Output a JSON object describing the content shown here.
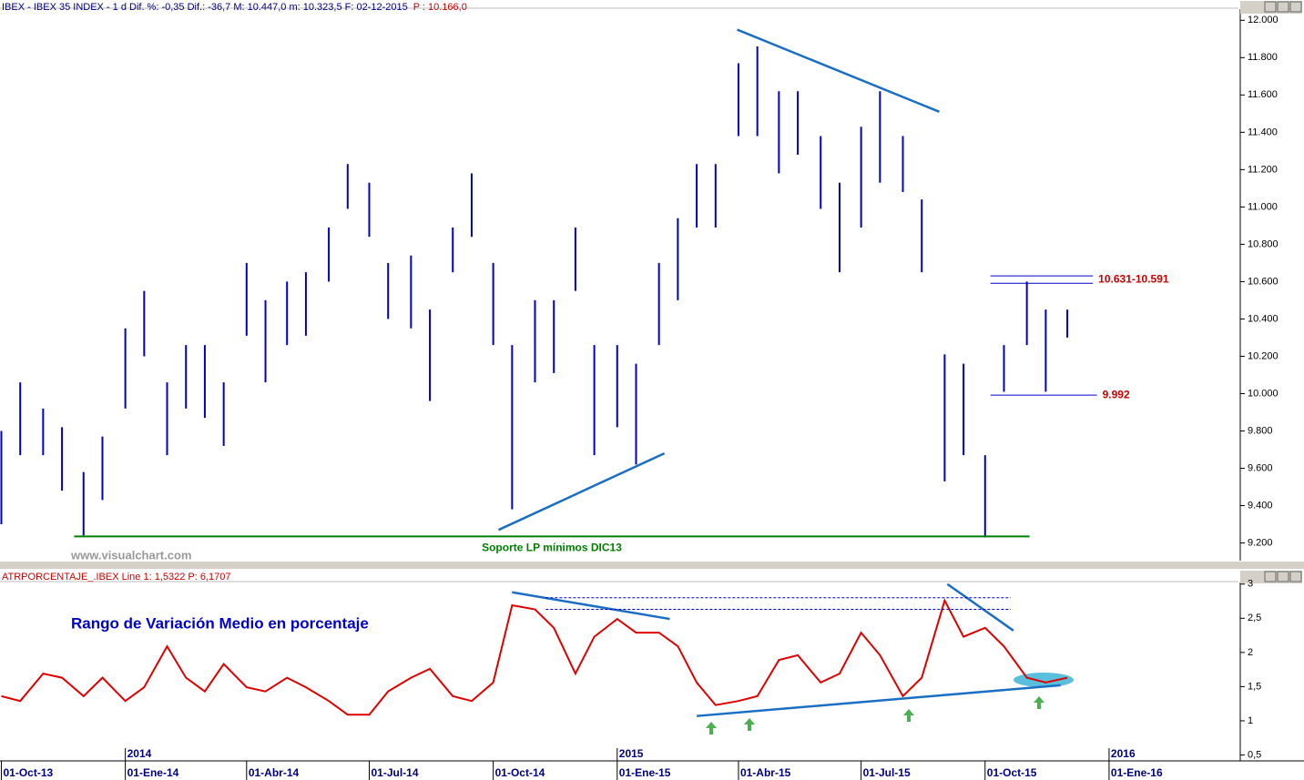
{
  "chart_data": [
    {
      "type": "ohlc",
      "header": "IBEX - IBEX 35 INDEX - 1 d Dif. %: -0,35 Dif.: -36,7 M: 10.447,0 m: 10.323,5 F: 02-12-2015",
      "price_label": "P : 10.166,0",
      "watermark": "www.visualchart.com",
      "color": "#0000cc",
      "x": [
        "2013-10-01",
        "2013-10-15",
        "2013-11-01",
        "2013-11-15",
        "2013-12-01",
        "2013-12-15",
        "2014-01-01",
        "2014-01-15",
        "2014-02-01",
        "2014-02-15",
        "2014-03-01",
        "2014-03-15",
        "2014-04-01",
        "2014-04-15",
        "2014-05-01",
        "2014-05-15",
        "2014-06-01",
        "2014-06-15",
        "2014-07-01",
        "2014-07-15",
        "2014-08-01",
        "2014-08-15",
        "2014-09-01",
        "2014-09-15",
        "2014-10-01",
        "2014-10-15",
        "2014-11-01",
        "2014-11-15",
        "2014-12-01",
        "2014-12-15",
        "2015-01-01",
        "2015-01-15",
        "2015-02-01",
        "2015-02-15",
        "2015-03-01",
        "2015-03-15",
        "2015-04-01",
        "2015-04-15",
        "2015-05-01",
        "2015-05-15",
        "2015-06-01",
        "2015-06-15",
        "2015-07-01",
        "2015-07-15",
        "2015-08-01",
        "2015-08-15",
        "2015-09-01",
        "2015-09-15",
        "2015-10-01",
        "2015-10-15",
        "2015-11-01",
        "2015-11-15",
        "2015-12-01"
      ],
      "high": [
        9.8,
        10.06,
        9.92,
        9.82,
        9.58,
        9.77,
        10.35,
        10.55,
        10.06,
        10.26,
        10.26,
        10.06,
        10.7,
        10.5,
        10.6,
        10.65,
        10.89,
        11.23,
        11.13,
        10.7,
        10.74,
        10.45,
        10.89,
        11.18,
        10.7,
        10.26,
        10.5,
        10.5,
        10.89,
        10.26,
        10.26,
        10.16,
        10.7,
        10.94,
        11.23,
        11.23,
        11.77,
        11.86,
        11.62,
        11.62,
        11.38,
        11.13,
        11.43,
        11.62,
        11.38,
        11.04,
        10.21,
        10.16,
        9.67,
        10.26,
        10.6,
        10.45,
        10.45
      ],
      "low": [
        9.3,
        9.67,
        9.67,
        9.48,
        9.24,
        9.43,
        9.92,
        10.2,
        9.67,
        9.92,
        9.87,
        9.72,
        10.31,
        10.06,
        10.26,
        10.31,
        10.6,
        10.99,
        10.84,
        10.4,
        10.35,
        9.96,
        10.65,
        10.84,
        10.26,
        9.38,
        10.06,
        10.11,
        10.55,
        9.67,
        9.82,
        9.62,
        10.26,
        10.5,
        10.89,
        10.89,
        11.38,
        11.38,
        11.18,
        11.28,
        10.99,
        10.65,
        10.89,
        11.13,
        11.08,
        10.65,
        9.53,
        9.67,
        9.23,
        10.01,
        10.26,
        10.01,
        10.3
      ],
      "xlim": [
        "2013-09-30",
        "2016-04-06"
      ],
      "ylim": [
        9.11,
        12.06
      ],
      "yticks": [
        {
          "value": 9.2,
          "label": "9.200"
        },
        {
          "value": 9.4,
          "label": "9.400"
        },
        {
          "value": 9.6,
          "label": "9.600"
        },
        {
          "value": 9.8,
          "label": "9.800"
        },
        {
          "value": 10,
          "label": "10.000"
        },
        {
          "value": 10.2,
          "label": "10.200"
        },
        {
          "value": 10.4,
          "label": "10.400"
        },
        {
          "value": 10.6,
          "label": "10.600"
        },
        {
          "value": 10.8,
          "label": "10.800"
        },
        {
          "value": 11,
          "label": "11.000"
        },
        {
          "value": 11.2,
          "label": "11.200"
        },
        {
          "value": 11.4,
          "label": "11.400"
        },
        {
          "value": 11.6,
          "label": "11.600"
        },
        {
          "value": 11.8,
          "label": "11.800"
        },
        {
          "value": 12,
          "label": "12.000"
        }
      ],
      "trendlines": [
        {
          "x": [
            "2015-03-31",
            "2015-08-28"
          ],
          "y": [
            11.95,
            11.51
          ],
          "color": "#1a6fc4"
        },
        {
          "x": [
            "2014-10-05",
            "2015-02-05"
          ],
          "y": [
            9.27,
            9.68
          ],
          "color": "#1a6fc4"
        }
      ],
      "levels": [
        {
          "label": "10.631-10.591",
          "values": [
            10.631,
            10.591
          ],
          "x": [
            "2015-10-05",
            "2015-12-20"
          ],
          "color": "#0000cc",
          "label_color": "#cc0000"
        },
        {
          "label": "9.992",
          "values": [
            9.992
          ],
          "x": [
            "2015-10-05",
            "2015-12-23"
          ],
          "color": "#0000cc",
          "label_color": "#cc0000"
        },
        {
          "label": "Soporte LP mínimos DIC13",
          "values": [
            9.235
          ],
          "x": [
            "2013-11-24",
            "2015-11-03"
          ],
          "color": "#008000",
          "label_color": "#008000"
        }
      ]
    },
    {
      "type": "line",
      "header": "ATRPORCENTAJE_.IBEX Line 1: 1,5322 P: 6,1707",
      "title": "Rango de Variación Medio en porcentaje",
      "color": "#e00000",
      "x": [
        "2013-10-01",
        "2013-10-15",
        "2013-11-01",
        "2013-11-15",
        "2013-12-01",
        "2013-12-15",
        "2014-01-01",
        "2014-01-15",
        "2014-02-01",
        "2014-02-15",
        "2014-03-01",
        "2014-03-15",
        "2014-04-01",
        "2014-04-15",
        "2014-05-01",
        "2014-05-15",
        "2014-06-01",
        "2014-06-15",
        "2014-07-01",
        "2014-07-15",
        "2014-08-01",
        "2014-08-15",
        "2014-09-01",
        "2014-09-15",
        "2014-10-01",
        "2014-10-15",
        "2014-11-01",
        "2014-11-15",
        "2014-12-01",
        "2014-12-15",
        "2015-01-01",
        "2015-01-15",
        "2015-02-01",
        "2015-02-15",
        "2015-03-01",
        "2015-03-15",
        "2015-04-01",
        "2015-04-15",
        "2015-05-01",
        "2015-05-15",
        "2015-06-01",
        "2015-06-15",
        "2015-07-01",
        "2015-07-15",
        "2015-08-01",
        "2015-08-15",
        "2015-09-01",
        "2015-09-15",
        "2015-10-01",
        "2015-10-15",
        "2015-11-01",
        "2015-11-15",
        "2015-12-01"
      ],
      "values": [
        1.36,
        1.29,
        1.69,
        1.63,
        1.36,
        1.63,
        1.29,
        1.49,
        2.09,
        1.63,
        1.43,
        1.83,
        1.49,
        1.43,
        1.63,
        1.49,
        1.29,
        1.09,
        1.09,
        1.43,
        1.63,
        1.76,
        1.36,
        1.29,
        1.56,
        2.69,
        2.63,
        2.36,
        1.69,
        2.23,
        2.49,
        2.29,
        2.29,
        2.09,
        1.56,
        1.23,
        1.29,
        1.36,
        1.89,
        1.96,
        1.56,
        1.69,
        2.29,
        1.96,
        1.36,
        1.63,
        2.76,
        2.23,
        2.36,
        2.09,
        1.63,
        1.56,
        1.63
      ],
      "xlim": [
        "2013-09-30",
        "2016-04-06"
      ],
      "ylim": [
        0.4,
        3.05
      ],
      "yticks": [
        {
          "value": 0.5,
          "label": "0,5"
        },
        1,
        {
          "value": 1.5,
          "label": "1,5"
        },
        2,
        {
          "value": 2.5,
          "label": "2,5"
        },
        3
      ],
      "xticks": [
        {
          "value": "2013-10-01",
          "label": "01-Oct-13"
        },
        {
          "value": "2014-01-01",
          "label": "01-Ene-14"
        },
        {
          "value": "2014-04-01",
          "label": "01-Abr-14"
        },
        {
          "value": "2014-07-01",
          "label": "01-Jul-14"
        },
        {
          "value": "2014-10-01",
          "label": "01-Oct-14"
        },
        {
          "value": "2015-01-01",
          "label": "01-Ene-15"
        },
        {
          "value": "2015-04-01",
          "label": "01-Abr-15"
        },
        {
          "value": "2015-07-01",
          "label": "01-Jul-15"
        },
        {
          "value": "2015-10-01",
          "label": "01-Oct-15"
        },
        {
          "value": "2016-01-01",
          "label": "01-Ene-16"
        }
      ],
      "year_ticks": [
        {
          "value": "2014-01-01",
          "label": "2014"
        },
        {
          "value": "2015-01-01",
          "label": "2015"
        },
        {
          "value": "2016-01-01",
          "label": "2016"
        }
      ],
      "trendlines": [
        {
          "x": [
            "2014-10-15",
            "2015-02-09"
          ],
          "y": [
            2.88,
            2.49
          ],
          "color": "#1a6fc4"
        },
        {
          "x": [
            "2015-09-03",
            "2015-10-22"
          ],
          "y": [
            3.0,
            2.32
          ],
          "color": "#1a6fc4"
        },
        {
          "x": [
            "2015-03-01",
            "2015-11-26"
          ],
          "y": [
            1.07,
            1.52
          ],
          "color": "#1a6fc4"
        }
      ],
      "levels": [
        {
          "values": [
            2.8,
            2.63
          ],
          "x": [
            "2014-11-09",
            "2015-10-20"
          ],
          "color": "#0000cc",
          "dashed": true
        }
      ]
    }
  ]
}
